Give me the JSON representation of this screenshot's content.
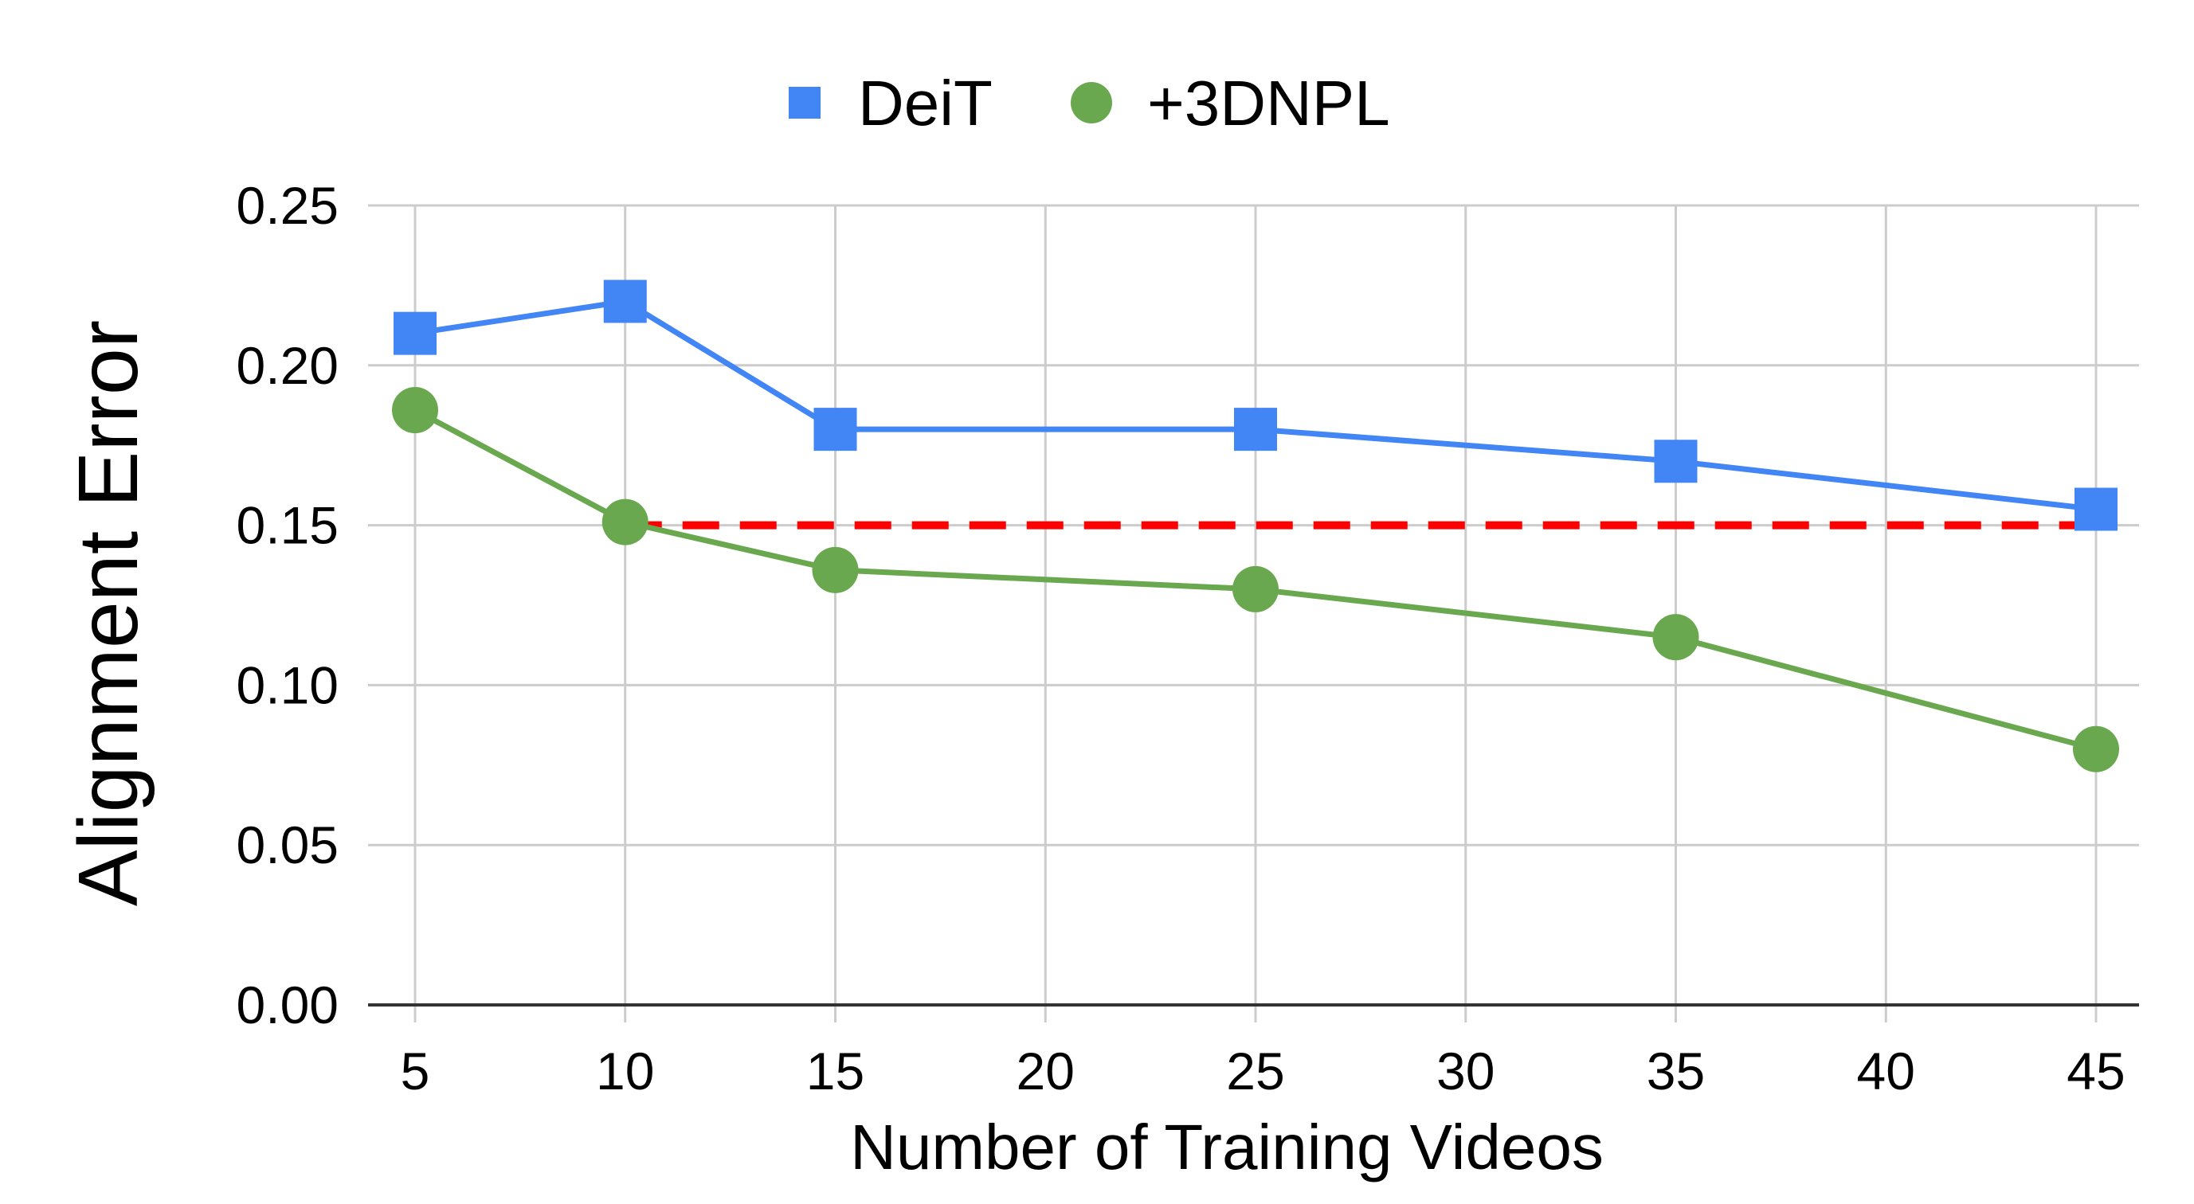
{
  "chart_data": {
    "type": "line",
    "title": "",
    "xlabel": "Number of Training Videos",
    "ylabel": "Alignment Error",
    "x_ticks": [
      "5",
      "10",
      "15",
      "20",
      "25",
      "30",
      "35",
      "40",
      "45"
    ],
    "y_ticks": [
      "0.00",
      "0.05",
      "0.10",
      "0.15",
      "0.20",
      "0.25"
    ],
    "xlim": [
      5,
      45
    ],
    "ylim": [
      0,
      0.25
    ],
    "grid": true,
    "legend_position": "top-center",
    "series": [
      {
        "name": "DeiT",
        "color": "#4285f4",
        "marker": "square",
        "x": [
          5,
          10,
          15,
          25,
          35,
          45
        ],
        "values": [
          0.21,
          0.22,
          0.18,
          0.18,
          0.17,
          0.155
        ]
      },
      {
        "name": "+3DNPL",
        "color": "#6aa84f",
        "marker": "circle",
        "x": [
          5,
          10,
          15,
          25,
          35,
          45
        ],
        "values": [
          0.186,
          0.151,
          0.136,
          0.13,
          0.115,
          0.08
        ]
      }
    ],
    "reference_line": {
      "style": "dashed",
      "color": "#ff0000",
      "y": 0.15,
      "x_start": 10,
      "x_end": 45
    }
  }
}
